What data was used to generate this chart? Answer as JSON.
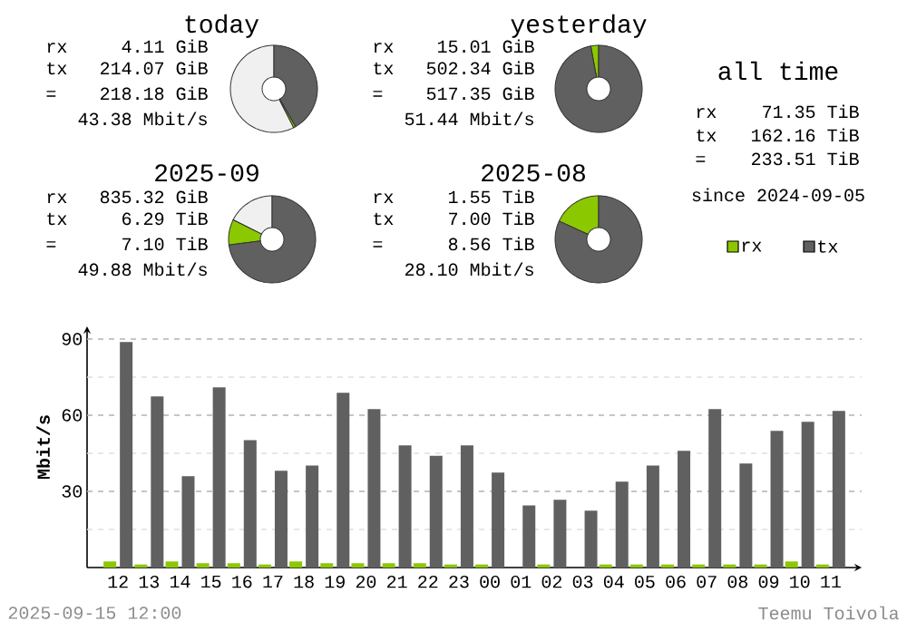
{
  "chart_data": [
    {
      "type": "donut",
      "title": "today",
      "categories": [
        null,
        null,
        null
      ],
      "values": [
        57.5,
        0.8,
        41.7
      ],
      "colors": [
        "#f0f0f0",
        "#8cc800",
        "#606060"
      ],
      "annotations": [
        "rx",
        "4.11 GiB",
        "tx",
        "214.07 GiB",
        "=",
        "218.18 GiB",
        "43.38 Mbit/s"
      ]
    },
    {
      "type": "donut",
      "title": "yesterday",
      "categories": [
        null,
        null
      ],
      "values": [
        2.9,
        97.1
      ],
      "colors": [
        "#8cc800",
        "#606060"
      ],
      "annotations": [
        "rx",
        "15.01 GiB",
        "tx",
        "502.34 GiB",
        "=",
        "517.35 GiB",
        "51.44 Mbit/s"
      ]
    },
    {
      "type": "other",
      "title": "all time",
      "annotations": [
        "rx",
        "71.35 TiB",
        "tx",
        "162.16 TiB",
        "=",
        "233.51 TiB",
        "since 2024-09-05"
      ]
    },
    {
      "type": "donut",
      "title": "2025-09",
      "categories": [
        null,
        null,
        null
      ],
      "values": [
        17.6,
        9.5,
        72.9
      ],
      "colors": [
        "#f0f0f0",
        "#8cc800",
        "#606060"
      ],
      "annotations": [
        "rx",
        "835.32 GiB",
        "tx",
        "6.29 TiB",
        "=",
        "7.10 TiB",
        "49.88 Mbit/s"
      ]
    },
    {
      "type": "donut",
      "title": "2025-08",
      "categories": [
        "rx",
        "tx"
      ],
      "values": [
        18.1,
        81.9
      ],
      "colors": [
        "#8cc800",
        "#606060"
      ],
      "legend": "right",
      "annotations": [
        "rx",
        "1.55 TiB",
        "tx",
        "7.00 TiB",
        "=",
        "8.56 TiB",
        "28.10 Mbit/s"
      ]
    },
    {
      "type": "bar",
      "ylabel": "Mbit/s",
      "categories": [
        "12",
        "13",
        "14",
        "15",
        "16",
        "17",
        "18",
        "19",
        "20",
        "21",
        "22",
        "23",
        "00",
        "01",
        "02",
        "03",
        "04",
        "05",
        "06",
        "07",
        "08",
        "09",
        "10",
        "11"
      ],
      "series": [
        {
          "color": "#8cc800",
          "values": [
            2.4,
            1.2,
            2.4,
            1.7,
            1.7,
            1.2,
            2.4,
            1.7,
            1.7,
            1.7,
            1.7,
            1.2,
            1.2,
            0,
            1.2,
            0,
            1.2,
            1.2,
            1.2,
            1.2,
            1.2,
            1.2,
            2.4,
            1.2
          ]
        },
        {
          "color": "#606060",
          "values": [
            88.8,
            67.4,
            36,
            71,
            50.2,
            38.1,
            40.2,
            68.8,
            62.4,
            48.1,
            44,
            48.1,
            37.4,
            24.5,
            26.7,
            22.4,
            33.8,
            40.2,
            46,
            62.4,
            41,
            53.8,
            57.4,
            61.7
          ]
        }
      ],
      "ylim": [
        0,
        95
      ],
      "yticks": [
        {
          "value": 15,
          "label": null
        },
        30,
        {
          "value": 45,
          "label": null
        },
        60,
        {
          "value": 75,
          "label": null
        },
        90
      ],
      "grid": "y",
      "annotations": [
        "2025-09-15 12:00",
        "Teemu Toivola"
      ]
    }
  ]
}
